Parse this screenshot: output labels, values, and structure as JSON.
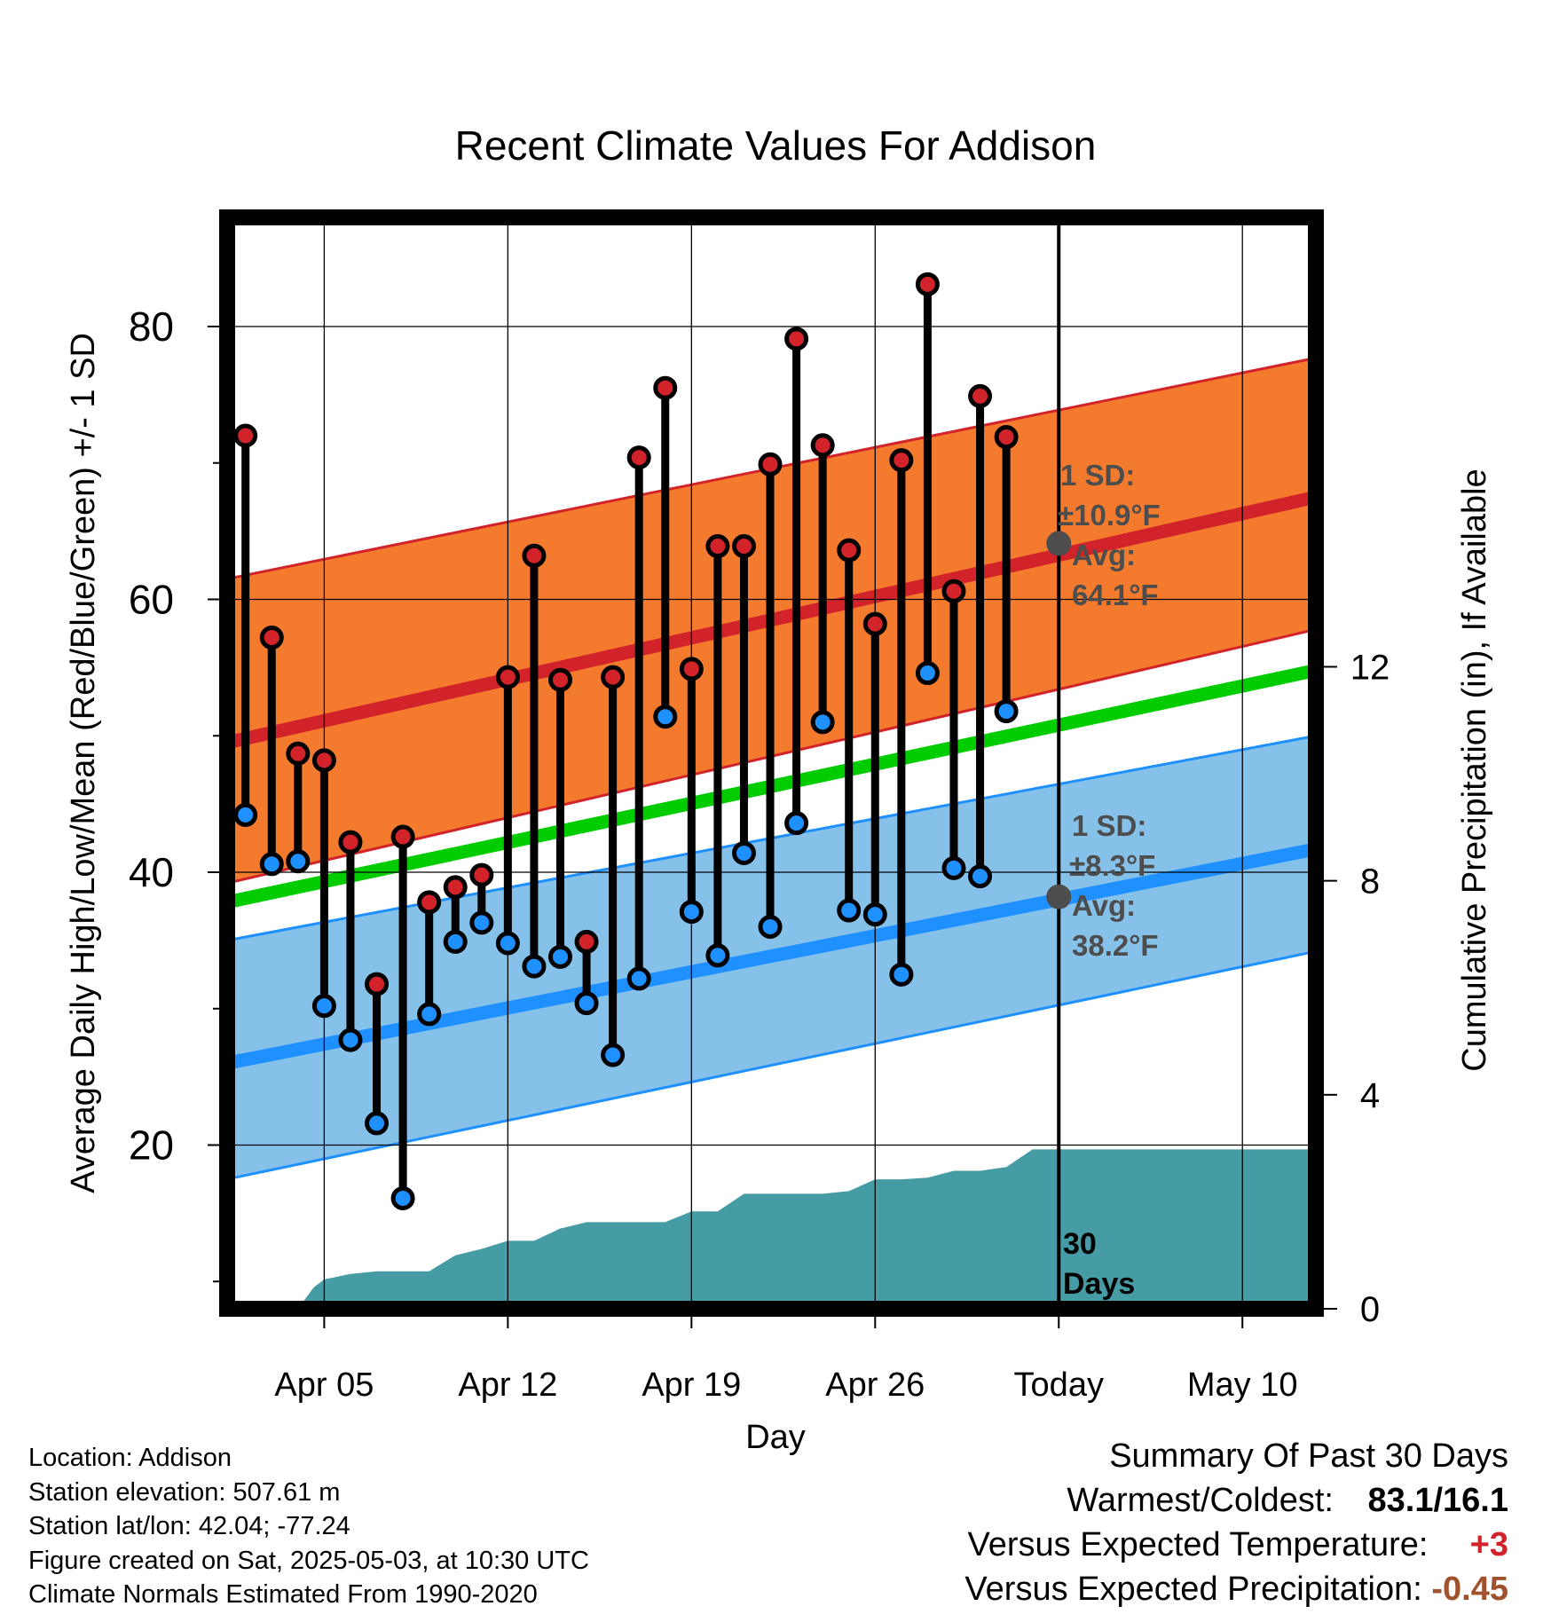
{
  "chart_data": {
    "type": "line",
    "title": "Recent Climate Values For Addison",
    "xlabel": "Day",
    "ylabel_left": "Average Daily High/Low/Mean (Red/Blue/Green) +/- 1 SD",
    "ylabel_right": "Cumulative Precipitation (in), If Available",
    "x_range_day": [
      1.3,
      42.8
    ],
    "y_range_left": [
      8,
      88
    ],
    "y_range_right": [
      0,
      20.4
    ],
    "y_ticks_left": [
      20,
      40,
      60,
      80
    ],
    "y_ticks_right": [
      0,
      4,
      8,
      12
    ],
    "x_ticks": [
      {
        "day": 5,
        "label": "Apr 05"
      },
      {
        "day": 12,
        "label": "Apr 12"
      },
      {
        "day": 19,
        "label": "Apr 19"
      },
      {
        "day": 26,
        "label": "Apr 26"
      },
      {
        "day": 33,
        "label": "Today"
      },
      {
        "day": 40,
        "label": "May 10"
      }
    ],
    "today_day": 33,
    "normal_high": {
      "start": 49.5,
      "end": 67.5,
      "color": "#d2232a"
    },
    "normal_high_upper": {
      "start": 61.5,
      "end": 77.7
    },
    "normal_high_lower": {
      "start": 39.2,
      "end": 57.8
    },
    "normal_high_band_color": "#f47a2e",
    "normal_mean": {
      "start": 37.8,
      "end": 54.8,
      "color": "#00cc00"
    },
    "normal_low": {
      "start": 26.0,
      "end": 41.7,
      "color": "#1e90ff"
    },
    "normal_low_upper": {
      "start": 35.0,
      "end": 50.0
    },
    "normal_low_lower": {
      "start": 17.5,
      "end": 34.2
    },
    "normal_low_band_color": "#85c1e9",
    "daily": {
      "days": [
        2,
        3,
        4,
        5,
        6,
        7,
        8,
        9,
        10,
        11,
        12,
        13,
        14,
        15,
        16,
        17,
        18,
        19,
        20,
        21,
        22,
        23,
        24,
        25,
        26,
        27,
        28,
        29,
        30,
        31,
        32
      ],
      "high": [
        72.0,
        57.2,
        48.7,
        48.2,
        42.2,
        31.8,
        42.6,
        37.8,
        38.9,
        39.8,
        54.3,
        63.2,
        54.1,
        34.9,
        54.3,
        70.4,
        75.5,
        54.9,
        63.9,
        63.9,
        69.9,
        79.1,
        71.3,
        63.6,
        58.2,
        70.2,
        83.1,
        60.6,
        74.9,
        71.9,
        null
      ],
      "low": [
        44.2,
        40.6,
        40.8,
        30.2,
        27.7,
        21.6,
        16.1,
        29.6,
        34.9,
        36.3,
        34.8,
        33.1,
        33.8,
        30.4,
        26.6,
        32.2,
        51.4,
        37.1,
        33.9,
        41.4,
        36.0,
        43.6,
        51.0,
        37.2,
        36.9,
        32.5,
        54.6,
        40.3,
        39.7,
        51.8,
        null
      ],
      "high_color": "#d2232a",
      "low_color": "#1e90ff"
    },
    "precip_cumulative": {
      "days": [
        1.3,
        4.0,
        4.6,
        5.0,
        6.0,
        7.0,
        8.0,
        9.0,
        10.0,
        11.0,
        12.0,
        13.0,
        14.0,
        15.0,
        16.0,
        17.0,
        18.0,
        19.0,
        20.0,
        21.0,
        22.0,
        23.0,
        24.0,
        25.0,
        26.0,
        27.0,
        28.0,
        29.0,
        30.0,
        31.0,
        32.0,
        33.0,
        42.8
      ],
      "values": [
        0.0,
        0.0,
        0.4,
        0.55,
        0.65,
        0.7,
        0.7,
        0.7,
        1.0,
        1.12,
        1.27,
        1.27,
        1.5,
        1.62,
        1.62,
        1.62,
        1.62,
        1.82,
        1.82,
        2.15,
        2.15,
        2.15,
        2.15,
        2.2,
        2.42,
        2.42,
        2.45,
        2.58,
        2.58,
        2.65,
        2.98,
        2.98,
        2.98
      ],
      "color": "#469ca4"
    },
    "annotations": {
      "high_sd_label": "1 SD:",
      "high_sd_value": "±10.9°F",
      "high_avg_label": "Avg:",
      "high_avg_value": "64.1°F",
      "high_avg_point": 64.1,
      "low_sd_label": "1 SD:",
      "low_sd_value": "±8.3°F",
      "low_avg_label": "Avg:",
      "low_avg_value": "38.2°F",
      "low_avg_point": 38.2,
      "days_number": "30",
      "days_word": "Days",
      "text_color": "#4d4d4d"
    }
  },
  "footer": {
    "location": "Location: Addison",
    "elevation": "Station elevation: 507.61 m",
    "latlon": "Station lat/lon: 42.04; -77.24",
    "created": "Figure created on Sat, 2025-05-03, at 10:30 UTC",
    "normals": "Climate Normals Estimated From 1990-2020"
  },
  "summary": {
    "title": "Summary Of Past 30 Days",
    "warmest_coldest_label": "Warmest/Coldest:",
    "warmest_coldest_value": "83.1/16.1",
    "temp_label": "Versus Expected Temperature:",
    "temp_value": "+3",
    "temp_color": "#d2232a",
    "precip_label": "Versus Expected Precipitation:",
    "precip_value": "-0.45",
    "precip_color": "#a0522d"
  }
}
